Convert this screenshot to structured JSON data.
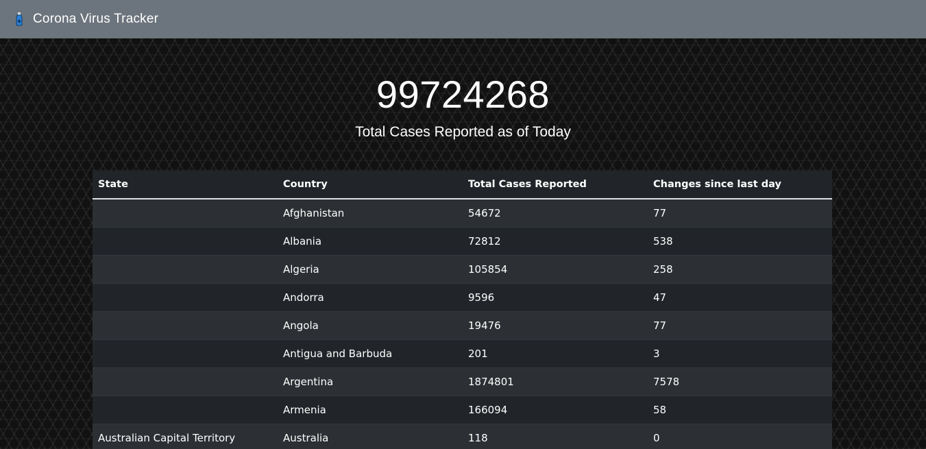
{
  "navbar": {
    "brand_icon": "virus-bottle-icon",
    "title": "Corona Virus Tracker",
    "bg_color": "#6c757d"
  },
  "hero": {
    "total_cases": "99724268",
    "caption": "Total Cases Reported as of Today"
  },
  "table": {
    "headers": [
      "State",
      "Country",
      "Total Cases Reported",
      "Changes since last day"
    ],
    "rows": [
      {
        "state": "",
        "country": "Afghanistan",
        "total": "54672",
        "change": "77"
      },
      {
        "state": "",
        "country": "Albania",
        "total": "72812",
        "change": "538"
      },
      {
        "state": "",
        "country": "Algeria",
        "total": "105854",
        "change": "258"
      },
      {
        "state": "",
        "country": "Andorra",
        "total": "9596",
        "change": "47"
      },
      {
        "state": "",
        "country": "Angola",
        "total": "19476",
        "change": "77"
      },
      {
        "state": "",
        "country": "Antigua and Barbuda",
        "total": "201",
        "change": "3"
      },
      {
        "state": "",
        "country": "Argentina",
        "total": "1874801",
        "change": "7578"
      },
      {
        "state": "",
        "country": "Armenia",
        "total": "166094",
        "change": "58"
      },
      {
        "state": "Australian Capital Territory",
        "country": "Australia",
        "total": "118",
        "change": "0"
      }
    ]
  }
}
